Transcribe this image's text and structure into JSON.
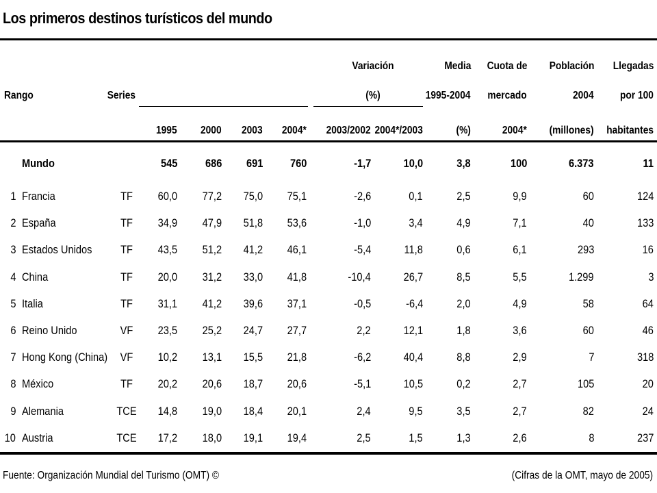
{
  "title": "Los primeros destinos turísticos del mundo",
  "headers": {
    "rango": "Rango",
    "series": "Series",
    "y1995": "1995",
    "y2000": "2000",
    "y2003": "2003",
    "y2004": "2004*",
    "variacion_l1": "Variación",
    "variacion_l2": "(%)",
    "var1": "2003/2002",
    "var2": "2004*/2003",
    "media_l1": "Media",
    "media_l2": "1995-2004",
    "media_l3": "(%)",
    "cuota_l1": "Cuota de",
    "cuota_l2": "mercado",
    "cuota_l3": "2004*",
    "poblacion_l1": "Población",
    "poblacion_l2": "2004",
    "poblacion_l3": "(millones)",
    "llegadas_l1": "Llegadas",
    "llegadas_l2": "por 100",
    "llegadas_l3": "habitantes"
  },
  "world": {
    "name": "Mundo",
    "values": [
      "545",
      "686",
      "691",
      "760",
      "-1,7",
      "10,0",
      "3,8",
      "100",
      "6.373",
      "11"
    ]
  },
  "rows": [
    {
      "rank": "1",
      "country": "Francia",
      "series": "TF",
      "values": [
        "60,0",
        "77,2",
        "75,0",
        "75,1",
        "-2,6",
        "0,1",
        "2,5",
        "9,9",
        "60",
        "124"
      ]
    },
    {
      "rank": "2",
      "country": "España",
      "series": "TF",
      "values": [
        "34,9",
        "47,9",
        "51,8",
        "53,6",
        "-1,0",
        "3,4",
        "4,9",
        "7,1",
        "40",
        "133"
      ]
    },
    {
      "rank": "3",
      "country": "Estados Unidos",
      "series": "TF",
      "values": [
        "43,5",
        "51,2",
        "41,2",
        "46,1",
        "-5,4",
        "11,8",
        "0,6",
        "6,1",
        "293",
        "16"
      ]
    },
    {
      "rank": "4",
      "country": "China",
      "series": "TF",
      "values": [
        "20,0",
        "31,2",
        "33,0",
        "41,8",
        "-10,4",
        "26,7",
        "8,5",
        "5,5",
        "1.299",
        "3"
      ]
    },
    {
      "rank": "5",
      "country": "Italia",
      "series": "TF",
      "values": [
        "31,1",
        "41,2",
        "39,6",
        "37,1",
        "-0,5",
        "-6,4",
        "2,0",
        "4,9",
        "58",
        "64"
      ]
    },
    {
      "rank": "6",
      "country": "Reino Unido",
      "series": "VF",
      "values": [
        "23,5",
        "25,2",
        "24,7",
        "27,7",
        "2,2",
        "12,1",
        "1,8",
        "3,6",
        "60",
        "46"
      ]
    },
    {
      "rank": "7",
      "country": "Hong Kong (China)",
      "series": "VF",
      "values": [
        "10,2",
        "13,1",
        "15,5",
        "21,8",
        "-6,2",
        "40,4",
        "8,8",
        "2,9",
        "7",
        "318"
      ]
    },
    {
      "rank": "8",
      "country": "México",
      "series": "TF",
      "values": [
        "20,2",
        "20,6",
        "18,7",
        "20,6",
        "-5,1",
        "10,5",
        "0,2",
        "2,7",
        "105",
        "20"
      ]
    },
    {
      "rank": "9",
      "country": "Alemania",
      "series": "TCE",
      "values": [
        "14,8",
        "19,0",
        "18,4",
        "20,1",
        "2,4",
        "9,5",
        "3,5",
        "2,7",
        "82",
        "24"
      ]
    },
    {
      "rank": "10",
      "country": "Austria",
      "series": "TCE",
      "values": [
        "17,2",
        "18,0",
        "19,1",
        "19,4",
        "2,5",
        "1,5",
        "1,3",
        "2,6",
        "8",
        "237"
      ]
    }
  ],
  "footer": {
    "source": "Fuente: Organización Mundial del Turismo (OMT) ©",
    "note": "(Cifras de la OMT, mayo de 2005)"
  }
}
